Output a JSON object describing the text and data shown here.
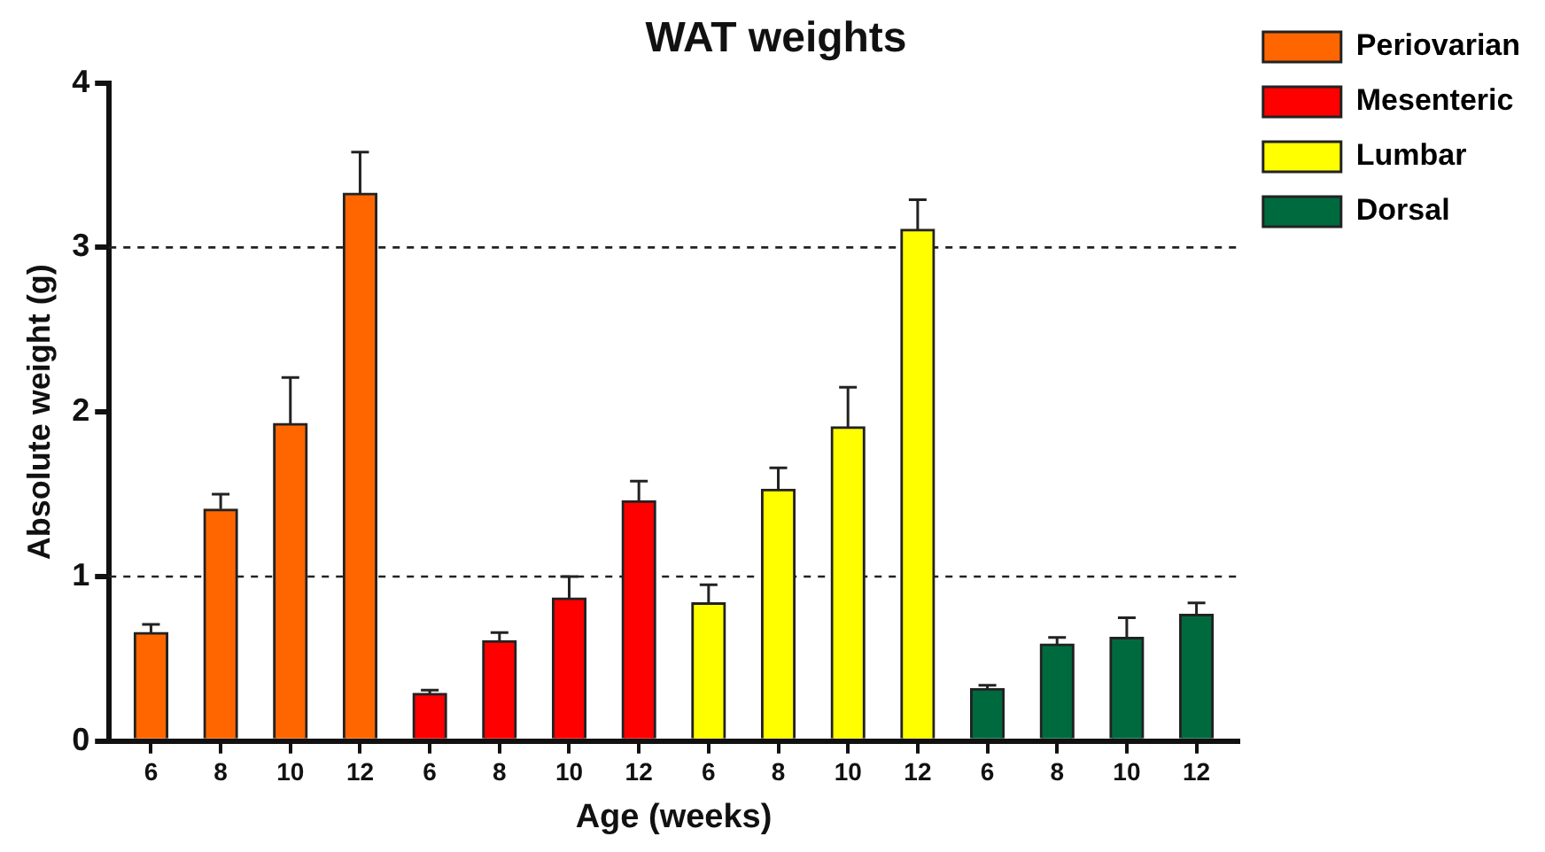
{
  "chart_data": {
    "type": "bar",
    "title": "WAT weights",
    "xlabel": "Age (weeks)",
    "ylabel": "Absolute weight (g)",
    "categories": [
      "6",
      "8",
      "10",
      "12",
      "6",
      "8",
      "10",
      "12",
      "6",
      "8",
      "10",
      "12",
      "6",
      "8",
      "10",
      "12"
    ],
    "series": [
      {
        "name": "Periovarian",
        "color": "#ff6600",
        "values": [
          0.66,
          1.41,
          1.93,
          3.33,
          null,
          null,
          null,
          null,
          null,
          null,
          null,
          null,
          null,
          null,
          null,
          null
        ],
        "errors": [
          [
            0.66,
            0.71
          ],
          [
            1.41,
            1.5
          ],
          [
            1.93,
            2.21
          ],
          [
            3.33,
            3.58
          ],
          null,
          null,
          null,
          null,
          null,
          null,
          null,
          null,
          null,
          null,
          null,
          null
        ]
      },
      {
        "name": "Mesenteric",
        "color": "#ff0000",
        "values": [
          null,
          null,
          null,
          null,
          0.29,
          0.61,
          0.87,
          1.46,
          null,
          null,
          null,
          null,
          null,
          null,
          null,
          null
        ],
        "errors": [
          null,
          null,
          null,
          null,
          [
            0.29,
            0.31
          ],
          [
            0.61,
            0.66
          ],
          [
            0.87,
            1.0
          ],
          [
            1.46,
            1.58
          ],
          null,
          null,
          null,
          null,
          null,
          null,
          null,
          null
        ]
      },
      {
        "name": "Lumbar",
        "color": "#ffff00",
        "values": [
          null,
          null,
          null,
          null,
          null,
          null,
          null,
          null,
          0.84,
          1.53,
          1.91,
          3.11,
          null,
          null,
          null,
          null
        ],
        "errors": [
          null,
          null,
          null,
          null,
          null,
          null,
          null,
          null,
          [
            0.84,
            0.95
          ],
          [
            1.53,
            1.66
          ],
          [
            1.91,
            2.15
          ],
          [
            3.11,
            3.29
          ],
          null,
          null,
          null,
          null
        ]
      },
      {
        "name": "Dorsal",
        "color": "#006a3f",
        "values": [
          null,
          null,
          null,
          null,
          null,
          null,
          null,
          null,
          null,
          null,
          null,
          null,
          0.32,
          0.59,
          0.63,
          0.77
        ],
        "errors": [
          null,
          null,
          null,
          null,
          null,
          null,
          null,
          null,
          null,
          null,
          null,
          null,
          [
            0.32,
            0.34
          ],
          [
            0.59,
            0.63
          ],
          [
            0.63,
            0.75
          ],
          [
            0.77,
            0.84
          ]
        ]
      }
    ],
    "ylim": [
      0,
      4
    ],
    "yticks": [
      0,
      1,
      2,
      3,
      4
    ],
    "grid": false,
    "legend": "right",
    "ref_lines": [
      {
        "axis": "y",
        "value": 1,
        "line_style": "dashed"
      },
      {
        "axis": "y",
        "value": 3,
        "line_style": "dashed"
      }
    ]
  }
}
